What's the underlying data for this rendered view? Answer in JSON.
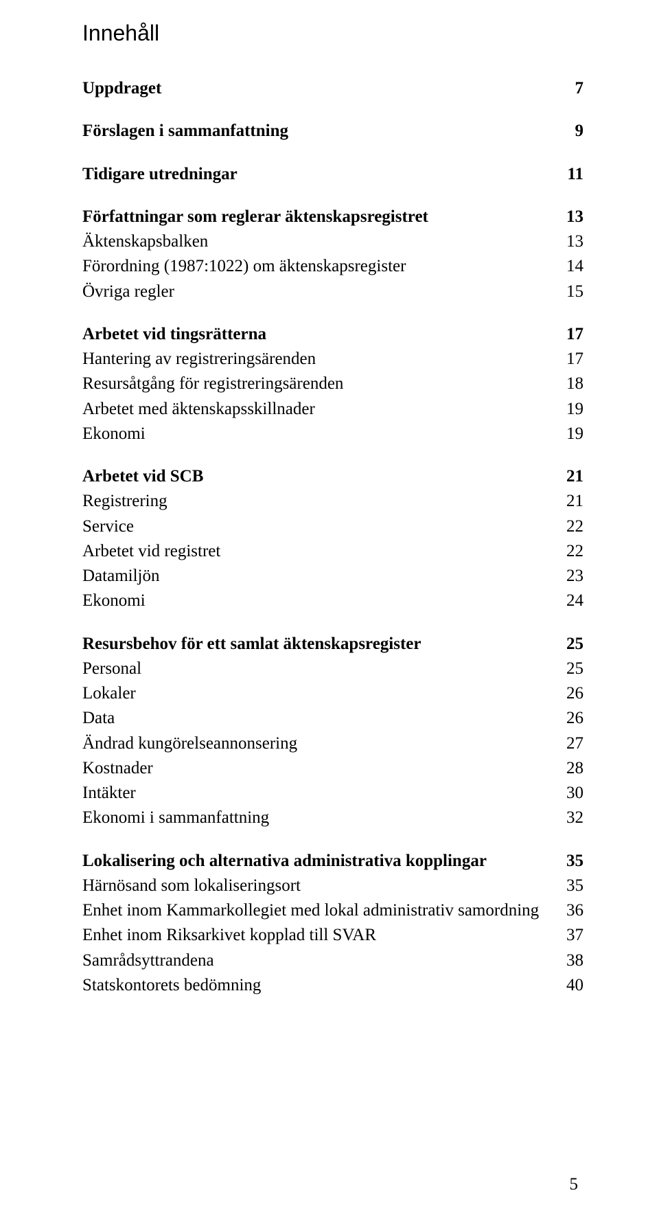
{
  "title": "Innehåll",
  "pageNumber": "5",
  "sections": [
    {
      "kind": "row",
      "bold": true,
      "label": "Uppdraget",
      "page": "7"
    },
    {
      "kind": "gap"
    },
    {
      "kind": "row",
      "bold": true,
      "label": "Förslagen i sammanfattning",
      "page": "9"
    },
    {
      "kind": "gap"
    },
    {
      "kind": "row",
      "bold": true,
      "label": "Tidigare utredningar",
      "page": "11"
    },
    {
      "kind": "gap"
    },
    {
      "kind": "row",
      "bold": true,
      "label": "Författningar som reglerar äktenskapsregistret",
      "page": "13"
    },
    {
      "kind": "row",
      "bold": false,
      "label": "Äktenskapsbalken",
      "page": "13"
    },
    {
      "kind": "row",
      "bold": false,
      "label": "Förordning (1987:1022) om äktenskapsregister",
      "page": "14"
    },
    {
      "kind": "row",
      "bold": false,
      "label": "Övriga regler",
      "page": "15"
    },
    {
      "kind": "gap"
    },
    {
      "kind": "row",
      "bold": true,
      "label": "Arbetet vid tingsrätterna",
      "page": "17"
    },
    {
      "kind": "row",
      "bold": false,
      "label": "Hantering av registreringsärenden",
      "page": "17"
    },
    {
      "kind": "row",
      "bold": false,
      "label": "Resursåtgång för registreringsärenden",
      "page": "18"
    },
    {
      "kind": "row",
      "bold": false,
      "label": "Arbetet med äktenskapsskillnader",
      "page": "19"
    },
    {
      "kind": "row",
      "bold": false,
      "label": "Ekonomi",
      "page": "19"
    },
    {
      "kind": "gap"
    },
    {
      "kind": "row",
      "bold": true,
      "label": "Arbetet vid SCB",
      "page": "21"
    },
    {
      "kind": "row",
      "bold": false,
      "label": "Registrering",
      "page": "21"
    },
    {
      "kind": "row",
      "bold": false,
      "label": "Service",
      "page": "22"
    },
    {
      "kind": "row",
      "bold": false,
      "label": "Arbetet vid registret",
      "page": "22"
    },
    {
      "kind": "row",
      "bold": false,
      "label": "Datamiljön",
      "page": "23"
    },
    {
      "kind": "row",
      "bold": false,
      "label": "Ekonomi",
      "page": "24"
    },
    {
      "kind": "gap"
    },
    {
      "kind": "row",
      "bold": true,
      "label": "Resursbehov för ett samlat äktenskapsregister",
      "page": "25"
    },
    {
      "kind": "row",
      "bold": false,
      "label": "Personal",
      "page": "25"
    },
    {
      "kind": "row",
      "bold": false,
      "label": "Lokaler",
      "page": "26"
    },
    {
      "kind": "row",
      "bold": false,
      "label": "Data",
      "page": "26"
    },
    {
      "kind": "row",
      "bold": false,
      "label": "Ändrad kungörelseannonsering",
      "page": "27"
    },
    {
      "kind": "row",
      "bold": false,
      "label": "Kostnader",
      "page": "28"
    },
    {
      "kind": "row",
      "bold": false,
      "label": "Intäkter",
      "page": "30"
    },
    {
      "kind": "row",
      "bold": false,
      "label": "Ekonomi i sammanfattning",
      "page": "32"
    },
    {
      "kind": "gap"
    },
    {
      "kind": "row",
      "bold": true,
      "label": "Lokalisering och alternativa administrativa kopplingar",
      "page": "35"
    },
    {
      "kind": "row",
      "bold": false,
      "label": "Härnösand som lokaliseringsort",
      "page": "35"
    },
    {
      "kind": "row",
      "bold": false,
      "label": "Enhet inom Kammarkollegiet med lokal administrativ samordning",
      "page": "36"
    },
    {
      "kind": "row",
      "bold": false,
      "label": "Enhet inom Riksarkivet kopplad till SVAR",
      "page": "37"
    },
    {
      "kind": "row",
      "bold": false,
      "label": "Samrådsyttrandena",
      "page": "38"
    },
    {
      "kind": "row",
      "bold": false,
      "label": "Statskontorets bedömning",
      "page": "40"
    }
  ]
}
